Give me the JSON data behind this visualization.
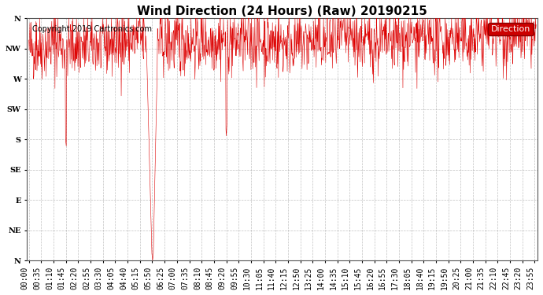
{
  "title": "Wind Direction (24 Hours) (Raw) 20190215",
  "copyright_text": "Copyright 2019 Cartronics.com",
  "legend_label": "Direction",
  "legend_bg": "#cc0000",
  "legend_text_color": "#ffffff",
  "line_color": "#dd0000",
  "dark_line_color": "#111111",
  "background_color": "#ffffff",
  "plot_bg_color": "#ffffff",
  "grid_color": "#999999",
  "ytick_labels": [
    "N",
    "NW",
    "W",
    "SW",
    "S",
    "SE",
    "E",
    "NE",
    "N"
  ],
  "ytick_values": [
    360,
    315,
    270,
    225,
    180,
    135,
    90,
    45,
    0
  ],
  "ylim": [
    0,
    360
  ],
  "seed": 42,
  "n_points": 1440,
  "base_direction": 315,
  "title_fontsize": 11,
  "tick_fontsize": 7,
  "copyright_fontsize": 7,
  "xlabel_rotation": 90,
  "tick_step_min": 35
}
